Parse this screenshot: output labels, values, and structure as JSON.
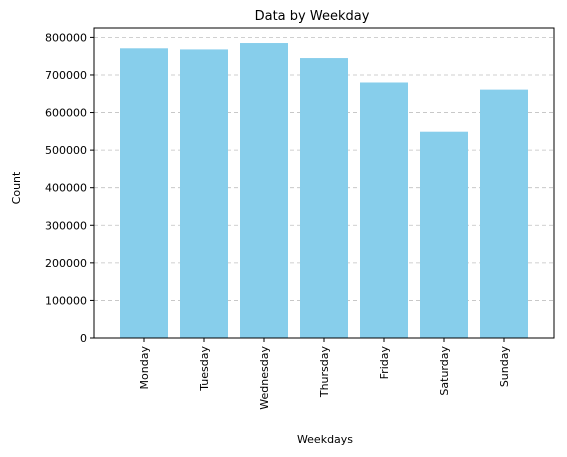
{
  "chart_data": {
    "type": "bar",
    "title": "Data by Weekday",
    "xlabel": "Weekdays",
    "ylabel": "Count",
    "categories": [
      "Monday",
      "Tuesday",
      "Wednesday",
      "Thursday",
      "Friday",
      "Saturday",
      "Sunday"
    ],
    "values": [
      771000,
      768000,
      785000,
      745000,
      680000,
      549000,
      661000
    ],
    "ylim": [
      0,
      825000
    ],
    "yticks": [
      0,
      100000,
      200000,
      300000,
      400000,
      500000,
      600000,
      700000,
      800000
    ],
    "ytick_labels": [
      "0",
      "100000",
      "200000",
      "300000",
      "400000",
      "500000",
      "600000",
      "700000",
      "800000"
    ],
    "grid": "y dashed",
    "bar_color": "#87CEEB",
    "grid_color": "#c0c0c0"
  }
}
